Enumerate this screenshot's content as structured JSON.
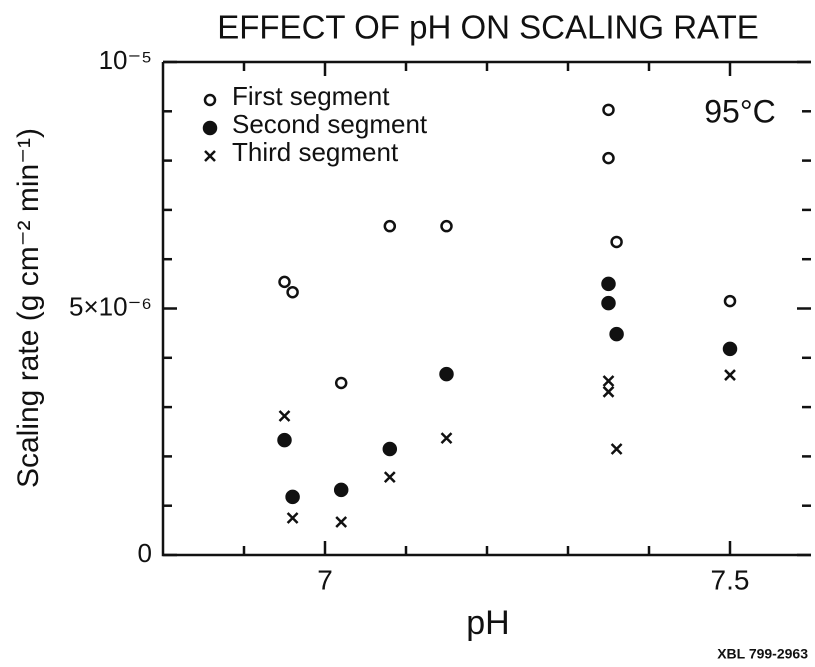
{
  "chart_data": {
    "type": "scatter",
    "title": "EFFECT OF pH ON SCALING RATE",
    "xlabel": "pH",
    "ylabel": "Scaling rate (g cm⁻² min⁻¹)",
    "annotation": "95°C",
    "footer": "XBL 799-2963",
    "xlim": [
      6.8,
      7.6
    ],
    "xticks": [
      7,
      7.5
    ],
    "xminorticks": [
      6.9,
      7.1,
      7.2,
      7.3,
      7.4
    ],
    "ylim": [
      0,
      1e-05
    ],
    "yticks": [
      0,
      {
        "value": 5e-06,
        "label": "5×10⁻⁶"
      },
      {
        "value": 1e-05,
        "label": "10⁻⁵"
      }
    ],
    "yminorticks": [
      1e-06,
      2e-06,
      3e-06,
      4e-06,
      6e-06,
      7e-06,
      8e-06,
      9e-06
    ],
    "legend": "upper left",
    "series": [
      {
        "name": "First segment",
        "marker": "open-circle",
        "color": "#111",
        "x": [
          6.95,
          6.96,
          7.02,
          7.08,
          7.15,
          7.35,
          7.35,
          7.36,
          7.5
        ],
        "values": [
          5.54e-06,
          5.33e-06,
          3.49e-06,
          6.67e-06,
          6.67e-06,
          9.03e-06,
          8.05e-06,
          6.35e-06,
          5.15e-06
        ]
      },
      {
        "name": "Second segment",
        "marker": "filled-circle",
        "color": "#111",
        "x": [
          6.95,
          6.96,
          7.02,
          7.08,
          7.15,
          7.35,
          7.35,
          7.36,
          7.5
        ],
        "values": [
          2.33e-06,
          1.18e-06,
          1.32e-06,
          2.15e-06,
          3.67e-06,
          5.5e-06,
          5.11e-06,
          4.48e-06,
          4.18e-06
        ]
      },
      {
        "name": "Third segment",
        "marker": "cross",
        "color": "#111",
        "x": [
          6.95,
          6.96,
          7.02,
          7.08,
          7.15,
          7.35,
          7.35,
          7.36,
          7.5
        ],
        "values": [
          2.82e-06,
          7.5e-07,
          6.7e-07,
          1.58e-06,
          2.37e-06,
          3.53e-06,
          3.31e-06,
          2.15e-06,
          3.65e-06
        ]
      }
    ]
  }
}
